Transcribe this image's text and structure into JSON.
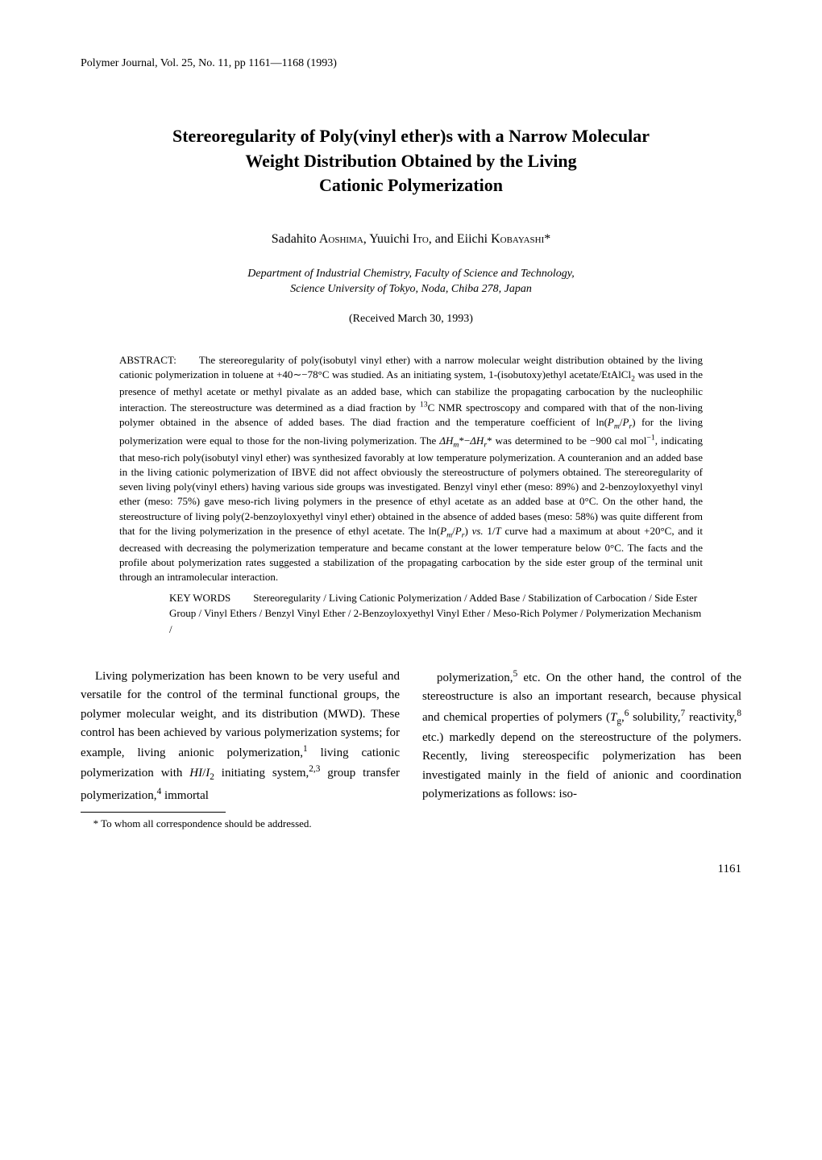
{
  "journal_header": "Polymer Journal, Vol. 25, No. 11, pp 1161—1168 (1993)",
  "title_line1": "Stereoregularity of Poly(vinyl ether)s with a Narrow Molecular",
  "title_line2": "Weight Distribution Obtained by the Living",
  "title_line3": "Cationic Polymerization",
  "authors_html": "Sadahito A<span class=\"smallcaps\">oshima</span>, Yuuichi I<span class=\"smallcaps\">to</span>, and Eiichi K<span class=\"smallcaps\">obayashi</span>*",
  "affiliation_line1": "Department of Industrial Chemistry, Faculty of Science and Technology,",
  "affiliation_line2": "Science University of Tokyo, Noda, Chiba 278, Japan",
  "received": "(Received March 30, 1993)",
  "abstract_label": "ABSTRACT:",
  "abstract_text_html": "The stereoregularity of poly(isobutyl vinyl ether) with a narrow molecular weight distribution obtained by the living cationic polymerization in toluene at +40∼−78°C was studied. As an initiating system, 1-(isobutoxy)ethyl acetate/EtAlCl<sub>2</sub> was used in the presence of methyl acetate or methyl pivalate as an added base, which can stabilize the propagating carbocation by the nucleophilic interaction. The stereostructure was determined as a diad fraction by <sup>13</sup>C NMR spectroscopy and compared with that of the non-living polymer obtained in the absence of added bases. The diad fraction and the temperature coefficient of ln(<i>P<sub>m</sub></i>/<i>P<sub>r</sub></i>) for the living polymerization were equal to those for the non-living polymerization. The <i>ΔH</i><sub><i>m</i></sub>*−<i>ΔH</i><sub><i>r</i></sub>* was determined to be −900 cal mol<sup>−1</sup>, indicating that meso-rich poly(isobutyl vinyl ether) was synthesized favorably at low temperature polymerization. A counteranion and an added base in the living cationic polymerization of IBVE did not affect obviously the stereostructure of polymers obtained. The stereoregularity of seven living poly(vinyl ethers) having various side groups was investigated. Benzyl vinyl ether (meso: 89%) and 2-benzoyloxyethyl vinyl ether (meso: 75%) gave meso-rich living polymers in the presence of ethyl acetate as an added base at 0°C. On the other hand, the stereostructure of living poly(2-benzoyloxyethyl vinyl ether) obtained in the absence of added bases (meso: 58%) was quite different from that for the living polymerization in the presence of ethyl acetate. The ln(<i>P<sub>m</sub></i>/<i>P<sub>r</sub></i>) <i>vs.</i> 1/<i>T</i> curve had a maximum at about +20°C, and it decreased with decreasing the polymerization temperature and became constant at the lower temperature below 0°C. The facts and the profile about polymerization rates suggested a stabilization of the propagating carbocation by the side ester group of the terminal unit through an intramolecular interaction.",
  "keywords_label": "KEY WORDS",
  "keywords_text": "Stereoregularity / Living Cationic Polymerization / Added Base / Stabilization of Carbocation / Side Ester Group / Vinyl Ethers / Benzyl Vinyl Ether / 2-Benzoyloxyethyl Vinyl Ether / Meso-Rich Polymer / Polymerization Mechanism /",
  "body_col1_html": "Living polymerization has been known to be very useful and versatile for the control of the terminal functional groups, the polymer molecular weight, and its distribution (MWD). These control has been achieved by various polymerization systems; for example, living anionic polymerization,<sup>1</sup> living cationic polymerization with <i>HI</i>/<i>I</i><sub>2</sub> initiating system,<sup>2,3</sup> group transfer polymerization,<sup>4</sup> immortal",
  "body_col2_html": "polymerization,<sup>5</sup> etc. On the other hand, the control of the stereostructure is also an important research, because physical and chemical properties of polymers (<i>T</i><sub>g</sub>,<sup>6</sup> solubility,<sup>7</sup> reactivity,<sup>8</sup> etc.) markedly depend on the stereostructure of the polymers. Recently, living stereospecific polymerization has been investigated mainly in the field of anionic and coordination polymerizations as follows: iso-",
  "footnote": "* To whom all correspondence should be addressed.",
  "page_number": "1161"
}
